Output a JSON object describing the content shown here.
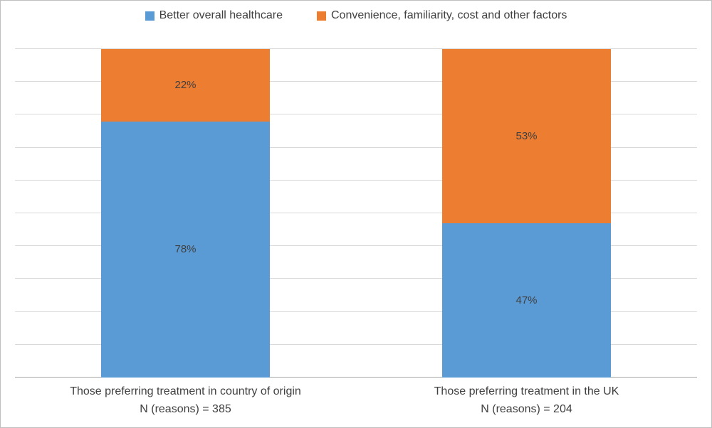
{
  "legend": {
    "items": [
      {
        "label": "Better overall healthcare",
        "color": "#5B9BD5"
      },
      {
        "label": "Convenience, familiarity, cost and other factors",
        "color": "#ED7D31"
      }
    ]
  },
  "chart_data": {
    "type": "bar",
    "subtype": "stacked-percent",
    "title": "",
    "xlabel": "",
    "ylabel": "",
    "ylim": [
      0,
      100
    ],
    "grid": true,
    "gridline_interval": 10,
    "legend_position": "top",
    "categories": [
      "Those preferring treatment in country of origin",
      "Those preferring treatment in the UK"
    ],
    "category_sublabels": [
      "N (reasons) = 385",
      "N (reasons) = 204"
    ],
    "series": [
      {
        "name": "Better overall healthcare",
        "color": "#5B9BD5",
        "values": [
          78,
          47
        ]
      },
      {
        "name": "Convenience, familiarity, cost and other factors",
        "color": "#ED7D31",
        "values": [
          22,
          53
        ]
      }
    ],
    "data_label_suffix": "%"
  },
  "colors": {
    "grid": "#d9d9d9",
    "axis": "#a6a6a6",
    "text": "#404040",
    "background": "#ffffff",
    "border": "#bfbfbf"
  }
}
